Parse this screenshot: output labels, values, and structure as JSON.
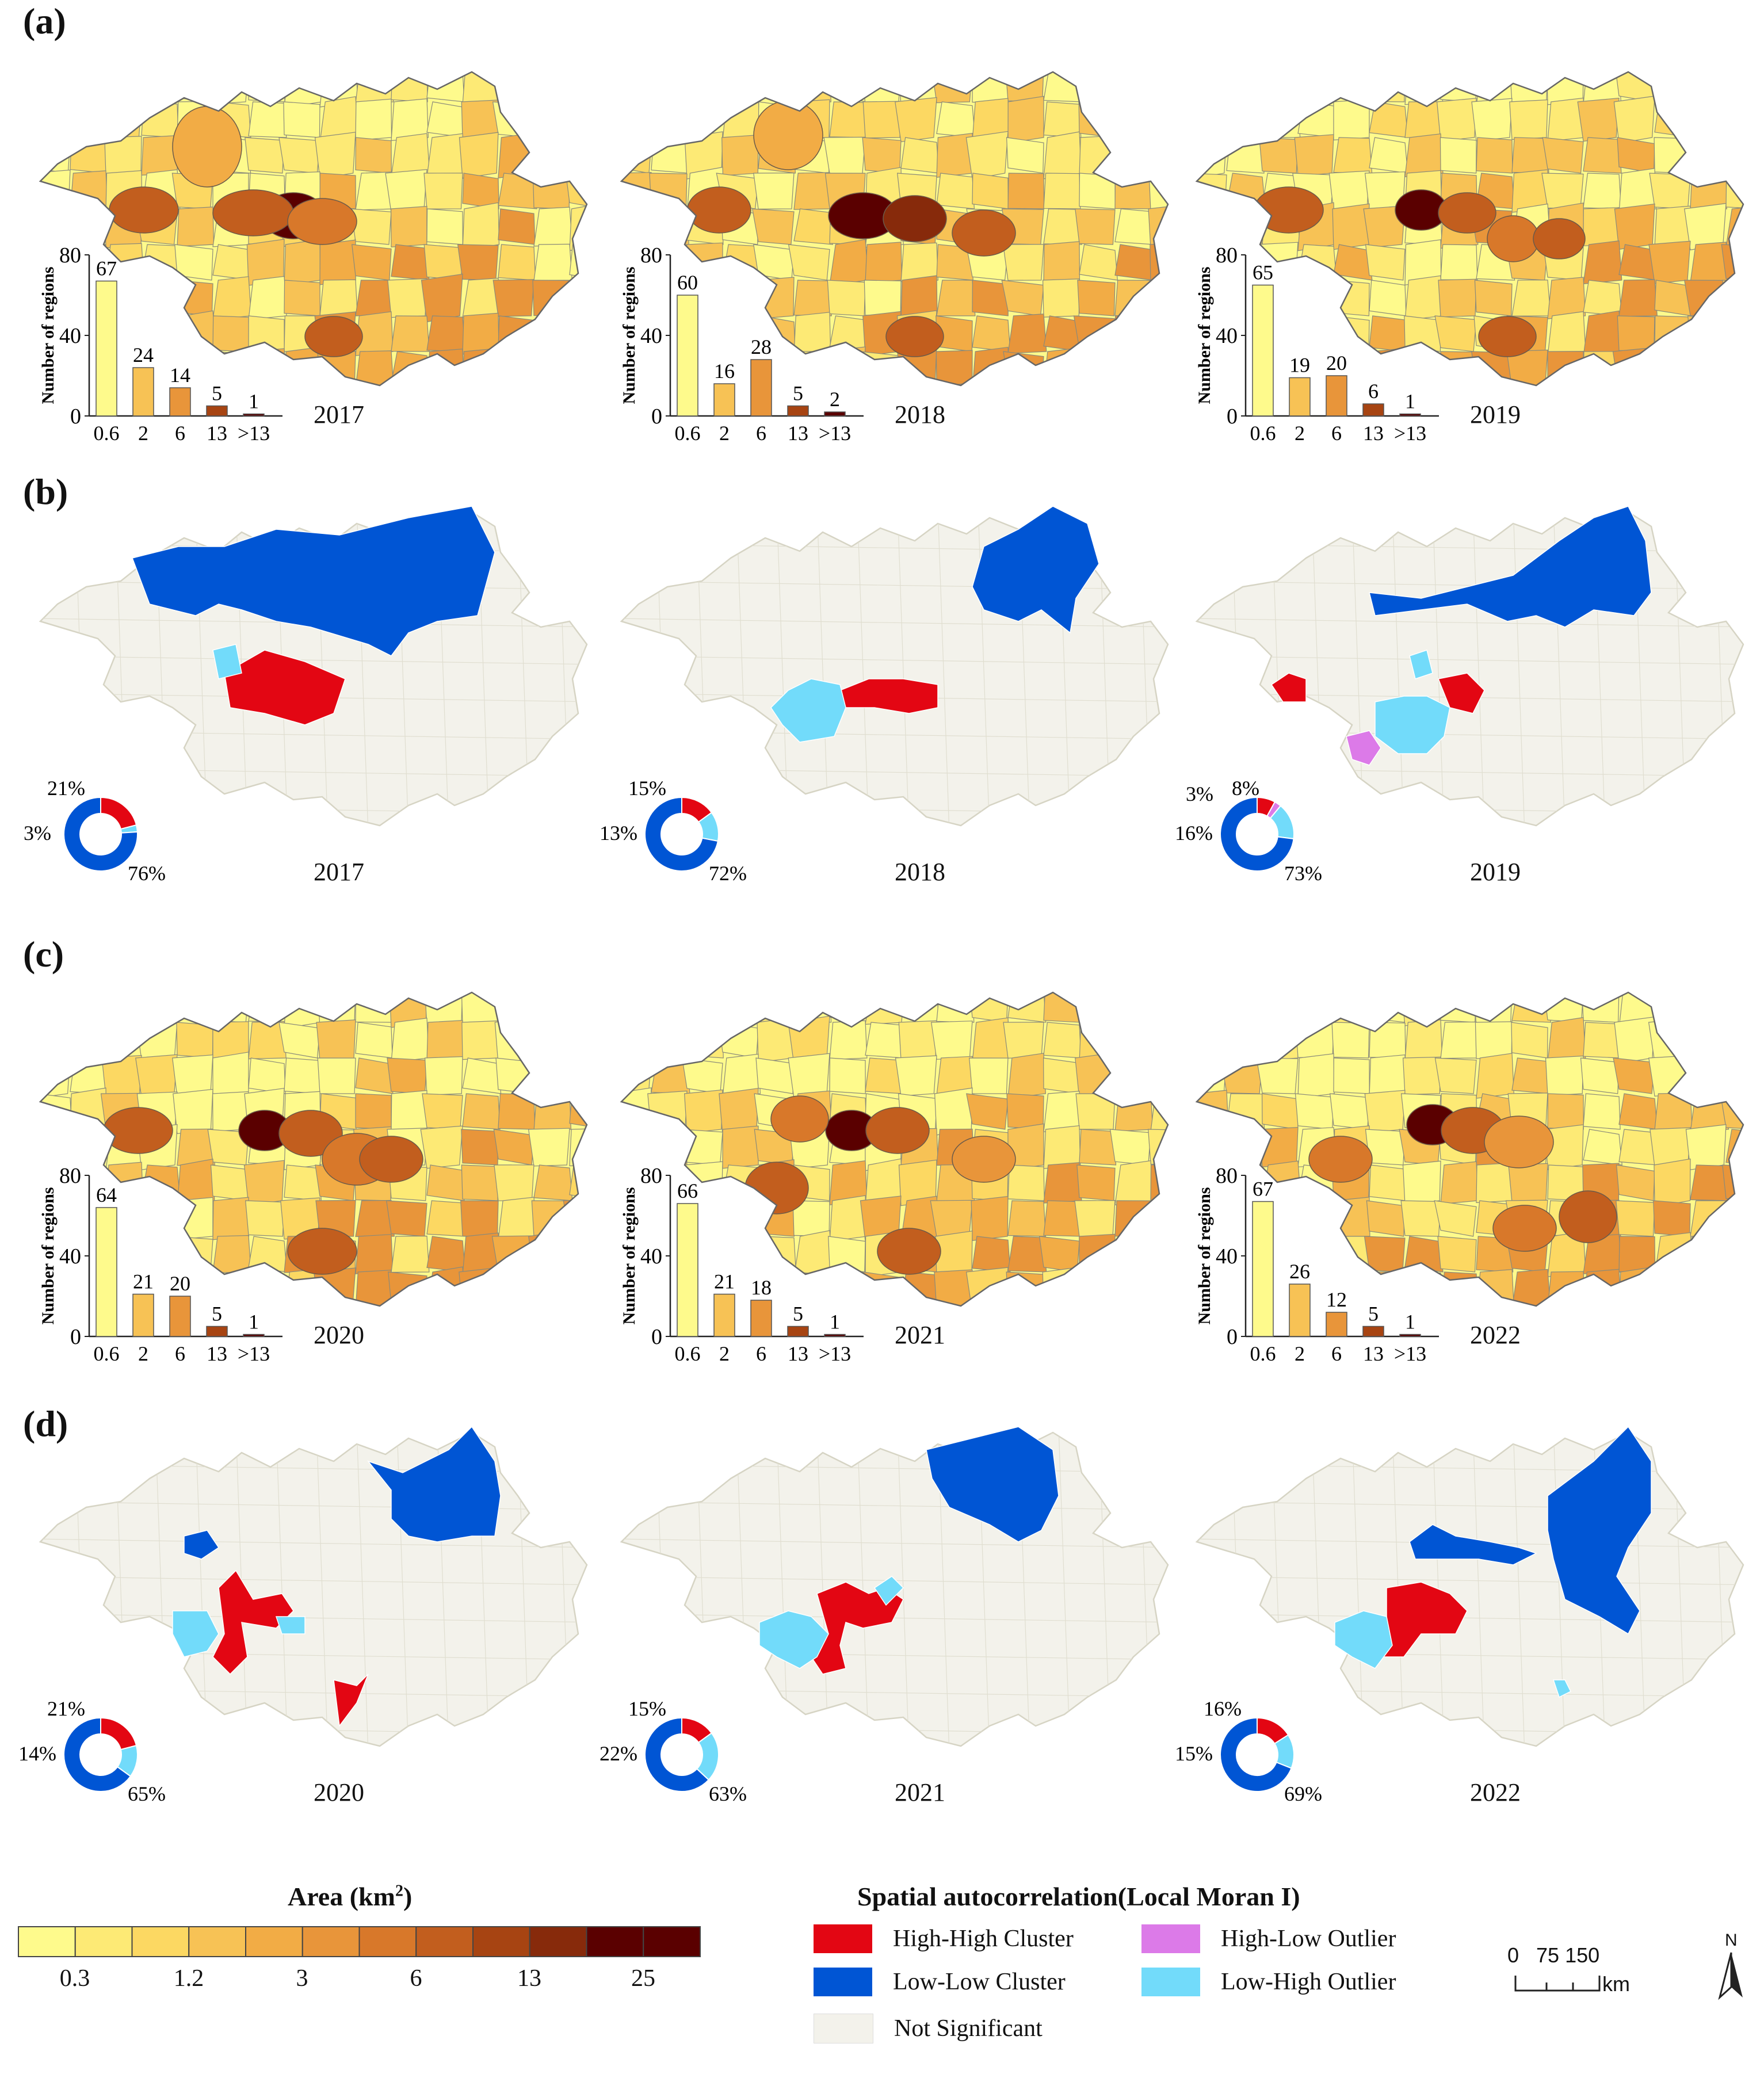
{
  "panel_labels": [
    "(a)",
    "(b)",
    "(c)",
    "(d)"
  ],
  "colors": {
    "area_ramp": [
      "#fefa8c",
      "#fdea75",
      "#fcd862",
      "#f7c255",
      "#f2ac45",
      "#e8953a",
      "#d8782a",
      "#c25e1e",
      "#a74412",
      "#872a0b",
      "#5a0000"
    ],
    "hh": "#e30613",
    "ll": "#0055d4",
    "hl": "#dc7ae8",
    "lh": "#72dbfa",
    "ns": "#f3f2eb",
    "bar_outline": "#444444"
  },
  "hist_panels": [
    {
      "year": "2017",
      "ylabel": "Number of regions"
    },
    {
      "year": "2018",
      "ylabel": "Number of regions"
    },
    {
      "year": "2019",
      "ylabel": "Number of regions"
    },
    {
      "year": "2020",
      "ylabel": "Number of regions"
    },
    {
      "year": "2021",
      "ylabel": "Number of regions"
    },
    {
      "year": "2022",
      "ylabel": "Number of regions"
    }
  ],
  "moran_panels": [
    {
      "year": "2017",
      "pct_hh": "21%",
      "pct_lh": "3%",
      "pct_ll": "76%",
      "pct_hl": ""
    },
    {
      "year": "2018",
      "pct_hh": "15%",
      "pct_lh": "13%",
      "pct_ll": "72%",
      "pct_hl": ""
    },
    {
      "year": "2019",
      "pct_hh": "8%",
      "pct_lh": "16%",
      "pct_ll": "73%",
      "pct_hl": "3%"
    },
    {
      "year": "2020",
      "pct_hh": "21%",
      "pct_lh": "14%",
      "pct_ll": "65%",
      "pct_hl": ""
    },
    {
      "year": "2021",
      "pct_hh": "15%",
      "pct_lh": "22%",
      "pct_ll": "63%",
      "pct_hl": ""
    },
    {
      "year": "2022",
      "pct_hh": "16%",
      "pct_lh": "15%",
      "pct_ll": "69%",
      "pct_hl": ""
    }
  ],
  "chart_data": [
    {
      "type": "bar",
      "title": "2017",
      "categories": [
        "0.6",
        "2",
        "6",
        "13",
        ">13"
      ],
      "values": [
        67,
        24,
        14,
        5,
        1
      ],
      "ylabel": "Number of regions",
      "ylim": [
        0,
        80
      ],
      "yticks": [
        "0",
        "40",
        "80"
      ]
    },
    {
      "type": "bar",
      "title": "2018",
      "categories": [
        "0.6",
        "2",
        "6",
        "13",
        ">13"
      ],
      "values": [
        60,
        16,
        28,
        5,
        2
      ],
      "ylabel": "Number of regions",
      "ylim": [
        0,
        80
      ],
      "yticks": [
        "0",
        "40",
        "80"
      ]
    },
    {
      "type": "bar",
      "title": "2019",
      "categories": [
        "0.6",
        "2",
        "6",
        "13",
        ">13"
      ],
      "values": [
        65,
        19,
        20,
        6,
        1
      ],
      "ylabel": "Number of regions",
      "ylim": [
        0,
        80
      ],
      "yticks": [
        "0",
        "40",
        "80"
      ]
    },
    {
      "type": "bar",
      "title": "2020",
      "categories": [
        "0.6",
        "2",
        "6",
        "13",
        ">13"
      ],
      "values": [
        64,
        21,
        20,
        5,
        1
      ],
      "ylabel": "Number of regions",
      "ylim": [
        0,
        80
      ],
      "yticks": [
        "0",
        "40",
        "80"
      ]
    },
    {
      "type": "bar",
      "title": "2021",
      "categories": [
        "0.6",
        "2",
        "6",
        "13",
        ">13"
      ],
      "values": [
        66,
        21,
        18,
        5,
        1
      ],
      "ylabel": "Number of regions",
      "ylim": [
        0,
        80
      ],
      "yticks": [
        "0",
        "40",
        "80"
      ]
    },
    {
      "type": "bar",
      "title": "2022",
      "categories": [
        "0.6",
        "2",
        "6",
        "13",
        ">13"
      ],
      "values": [
        67,
        26,
        12,
        5,
        1
      ],
      "ylabel": "Number of regions",
      "ylim": [
        0,
        80
      ],
      "yticks": [
        "0",
        "40",
        "80"
      ]
    },
    {
      "type": "pie",
      "title": "2017",
      "categories": [
        "High-High Cluster",
        "Low-High Outlier",
        "Low-Low Cluster"
      ],
      "values": [
        21,
        3,
        76
      ]
    },
    {
      "type": "pie",
      "title": "2018",
      "categories": [
        "High-High Cluster",
        "Low-High Outlier",
        "Low-Low Cluster"
      ],
      "values": [
        15,
        13,
        72
      ]
    },
    {
      "type": "pie",
      "title": "2019",
      "categories": [
        "High-High Cluster",
        "High-Low Outlier",
        "Low-High Outlier",
        "Low-Low Cluster"
      ],
      "values": [
        8,
        3,
        16,
        73
      ]
    },
    {
      "type": "pie",
      "title": "2020",
      "categories": [
        "High-High Cluster",
        "Low-High Outlier",
        "Low-Low Cluster"
      ],
      "values": [
        21,
        14,
        65
      ]
    },
    {
      "type": "pie",
      "title": "2021",
      "categories": [
        "High-High Cluster",
        "Low-High Outlier",
        "Low-Low Cluster"
      ],
      "values": [
        15,
        22,
        63
      ]
    },
    {
      "type": "pie",
      "title": "2022",
      "categories": [
        "High-High Cluster",
        "Low-High Outlier",
        "Low-Low Cluster"
      ],
      "values": [
        16,
        15,
        69
      ]
    }
  ],
  "legend": {
    "area_title": "Area (km",
    "area_title_sup": "2",
    "area_title_end": ")",
    "area_ticks": [
      "0.3",
      "1.2",
      "3",
      "6",
      "13",
      "25"
    ],
    "moran_title": "Spatial autocorrelation(Local Moran I)",
    "moran_items": [
      "High-High Cluster",
      "High-Low Outlier",
      "Low-Low Cluster",
      "Low-High Outlier",
      "Not Significant"
    ],
    "scale_nums": "0   75 150",
    "scale_unit": "km",
    "north": "N"
  }
}
